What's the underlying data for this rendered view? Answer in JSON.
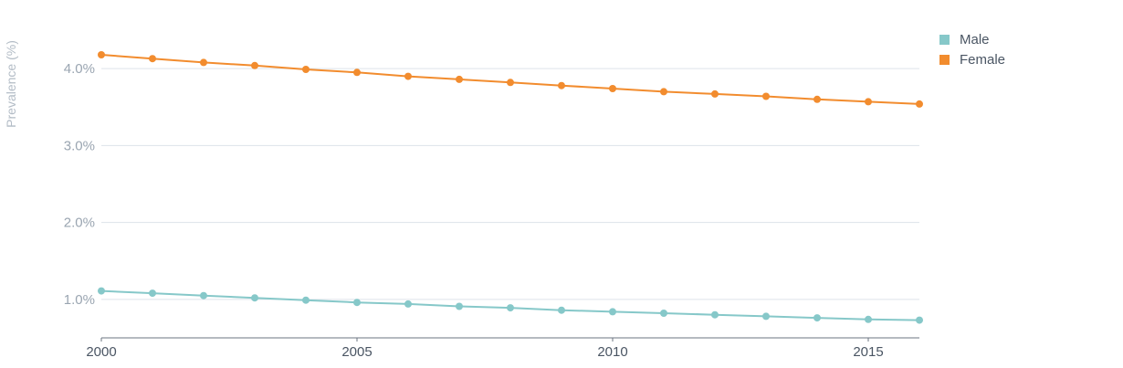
{
  "chart_data": {
    "type": "line",
    "ylabel": "Prevalence (%)",
    "xlabel": "",
    "x": [
      2000,
      2001,
      2002,
      2003,
      2004,
      2005,
      2006,
      2007,
      2008,
      2009,
      2010,
      2011,
      2012,
      2013,
      2014,
      2015,
      2016
    ],
    "xlim": [
      2000,
      2016
    ],
    "xticks": [
      {
        "value": 2000,
        "label": "2000"
      },
      {
        "value": 2005,
        "label": "2005"
      },
      {
        "value": 2010,
        "label": "2010"
      },
      {
        "value": 2015,
        "label": "2015"
      }
    ],
    "ylim": [
      0.5,
      4.5
    ],
    "yticks": [
      {
        "value": 1.0,
        "label": "1.0%"
      },
      {
        "value": 2.0,
        "label": "2.0%"
      },
      {
        "value": 3.0,
        "label": "3.0%"
      },
      {
        "value": 4.0,
        "label": "4.0%"
      }
    ],
    "grid": true,
    "legend_position": "top-right",
    "series": [
      {
        "name": "Male",
        "color": "#86c8c9",
        "values": [
          1.11,
          1.08,
          1.05,
          1.02,
          0.99,
          0.96,
          0.94,
          0.91,
          0.89,
          0.86,
          0.84,
          0.82,
          0.8,
          0.78,
          0.76,
          0.74,
          0.73
        ]
      },
      {
        "name": "Female",
        "color": "#f28c2e",
        "values": [
          4.18,
          4.13,
          4.08,
          4.04,
          3.99,
          3.95,
          3.9,
          3.86,
          3.82,
          3.78,
          3.74,
          3.7,
          3.67,
          3.64,
          3.6,
          3.57,
          3.54
        ]
      }
    ]
  }
}
